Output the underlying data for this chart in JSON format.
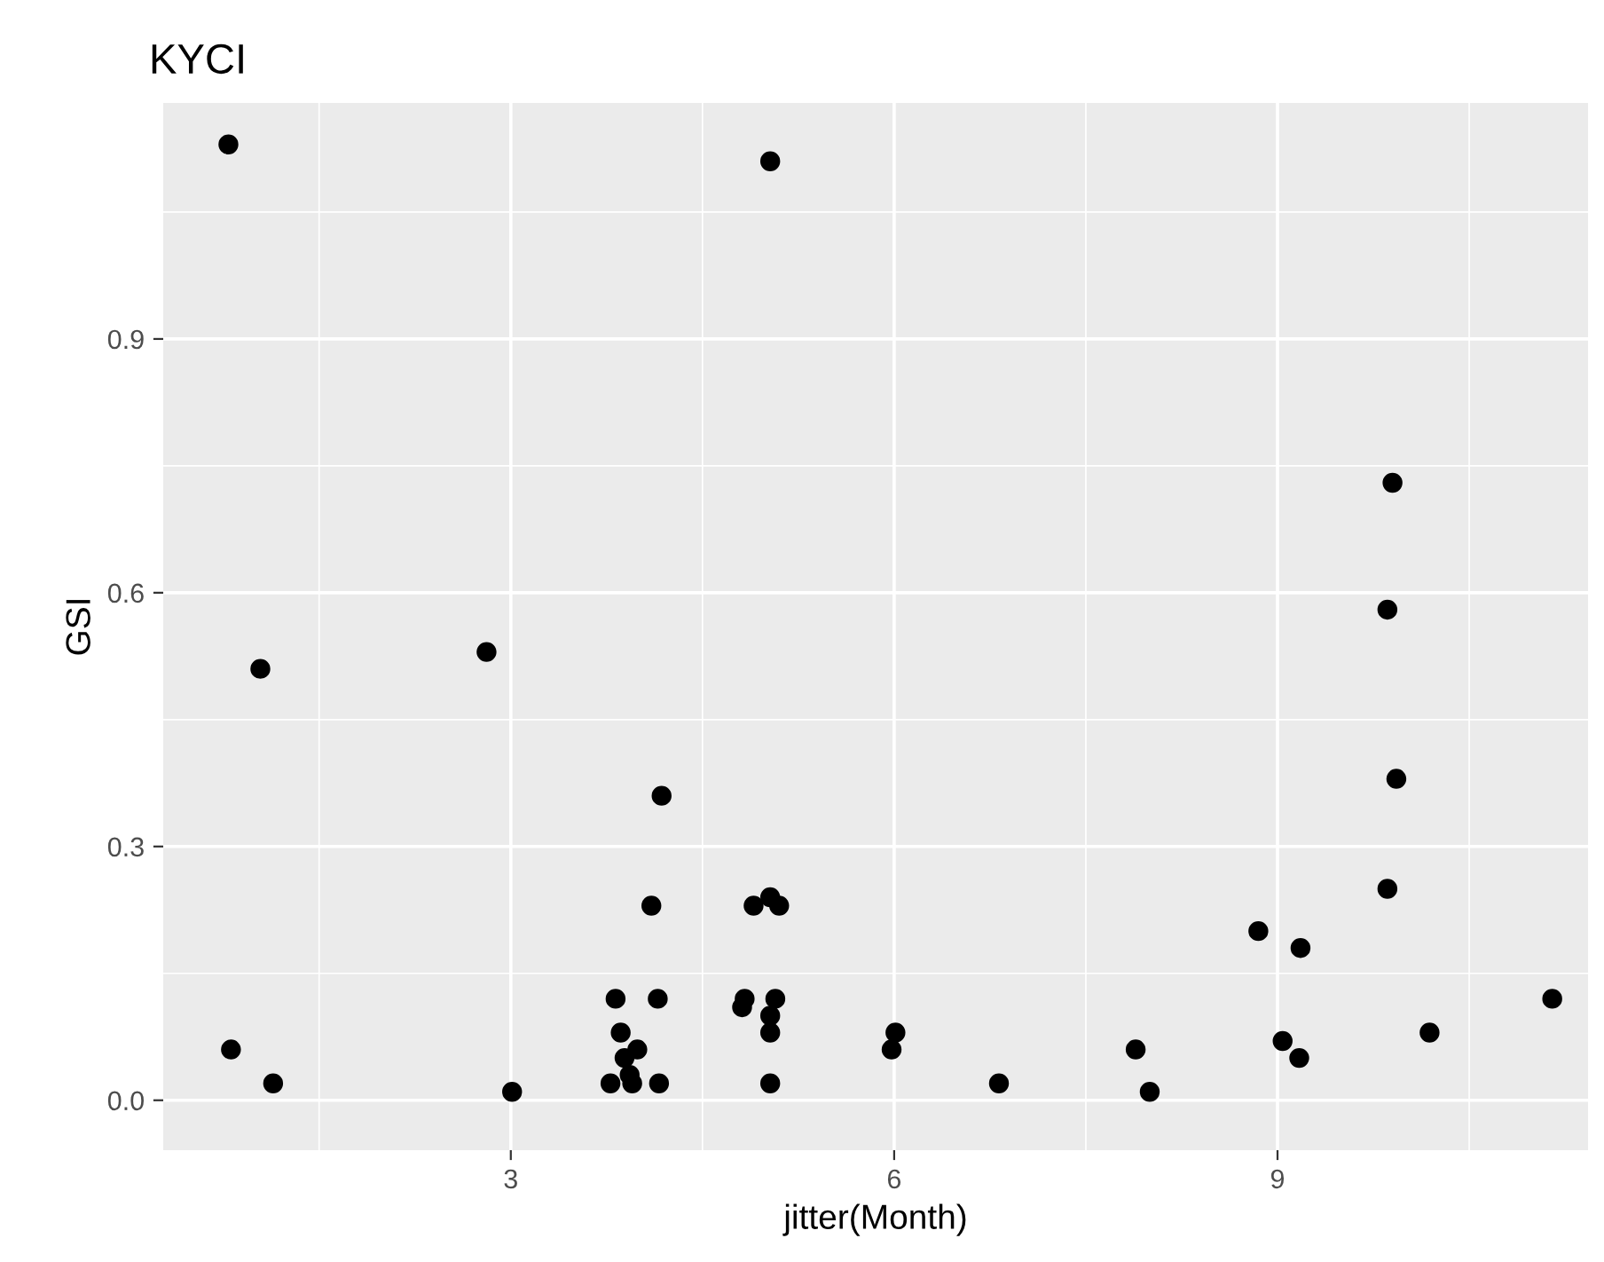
{
  "chart_data": {
    "type": "scatter",
    "title": "KYCI",
    "xlabel": "jitter(Month)",
    "ylabel": "GSI",
    "x": [
      0.79,
      5.03,
      1.04,
      2.81,
      9.9,
      9.86,
      9.93,
      9.86,
      4.18,
      8.85,
      9.18,
      4.1,
      4.9,
      5.03,
      5.1,
      0.81,
      1.14,
      3.01,
      3.82,
      4.15,
      3.86,
      3.99,
      3.89,
      3.93,
      3.78,
      3.95,
      4.16,
      4.83,
      4.81,
      5.07,
      5.03,
      5.03,
      5.03,
      6.01,
      5.98,
      6.82,
      7.89,
      8.0,
      9.04,
      9.17,
      10.19,
      11.15
    ],
    "values": [
      1.13,
      1.11,
      0.51,
      0.53,
      0.73,
      0.58,
      0.38,
      0.25,
      0.36,
      0.2,
      0.18,
      0.23,
      0.23,
      0.24,
      0.23,
      0.06,
      0.02,
      0.01,
      0.12,
      0.12,
      0.08,
      0.06,
      0.05,
      0.03,
      0.02,
      0.02,
      0.02,
      0.12,
      0.11,
      0.12,
      0.1,
      0.08,
      0.02,
      0.08,
      0.06,
      0.02,
      0.06,
      0.01,
      0.07,
      0.05,
      0.08,
      0.12
    ],
    "color": "#000000",
    "marker": "circle",
    "xlim": [
      0.28,
      11.43
    ],
    "ylim": [
      -0.059,
      1.179
    ],
    "xticks": [
      3,
      6,
      9
    ],
    "yticks": [
      {
        "value": 0,
        "label": "0.0"
      },
      {
        "value": 0.3,
        "label": "0.3"
      },
      {
        "value": 0.6,
        "label": "0.6"
      },
      {
        "value": 0.9,
        "label": "0.9"
      }
    ],
    "grid": true,
    "legend": false
  }
}
